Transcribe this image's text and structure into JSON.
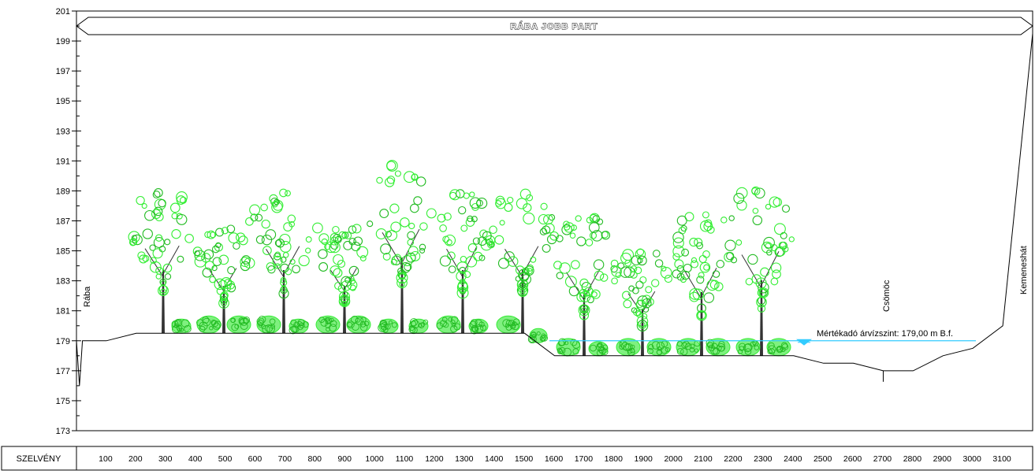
{
  "banner": {
    "text": "RÁBA JOBB PART"
  },
  "y_axis": {
    "tick_labels": [
      "201",
      "199",
      "197",
      "195",
      "193",
      "191",
      "189",
      "187",
      "185",
      "183",
      "181",
      "179",
      "177",
      "175",
      "173"
    ],
    "min": 173,
    "max": 201
  },
  "station_row": {
    "header": "SZELVÉNY",
    "labels": [
      "100",
      "200",
      "300",
      "400",
      "500",
      "600",
      "700",
      "800",
      "900",
      "1000",
      "1100",
      "1200",
      "1300",
      "1400",
      "1500",
      "1600",
      "1700",
      "1800",
      "1900",
      "2000",
      "2100",
      "2200",
      "2300",
      "2400",
      "2500",
      "2600",
      "2700",
      "2800",
      "2900",
      "3000",
      "3100"
    ]
  },
  "places": {
    "left": "Rába",
    "creek": "Csömöc",
    "right": "Kemeneshát"
  },
  "water_level": {
    "label": "Mértékadó árvízszint: 179,00 m B.f.",
    "elevation": 179.0,
    "color": "#33ccff"
  },
  "colors": {
    "vegetation": "#33ee33",
    "vegetation_dark": "#22bb22",
    "trunk": "#333333",
    "line": "#000000"
  },
  "chart_data": {
    "type": "line",
    "title": "RÁBA JOBB PART",
    "xlabel": "SZELVÉNY",
    "ylabel": "",
    "ylim": [
      173,
      201
    ],
    "xlim": [
      0,
      3200
    ],
    "series": [
      {
        "x": [
          0,
          10,
          20,
          100,
          200,
          300,
          1500,
          1600,
          2400,
          2500,
          2600,
          2700,
          2800,
          2900,
          3000,
          3100,
          3200
        ],
        "y": [
          179,
          176,
          179,
          179,
          179.5,
          179.5,
          179.5,
          178,
          178,
          177.5,
          177.5,
          177,
          177,
          178,
          178.5,
          180,
          199.5
        ]
      }
    ]
  }
}
